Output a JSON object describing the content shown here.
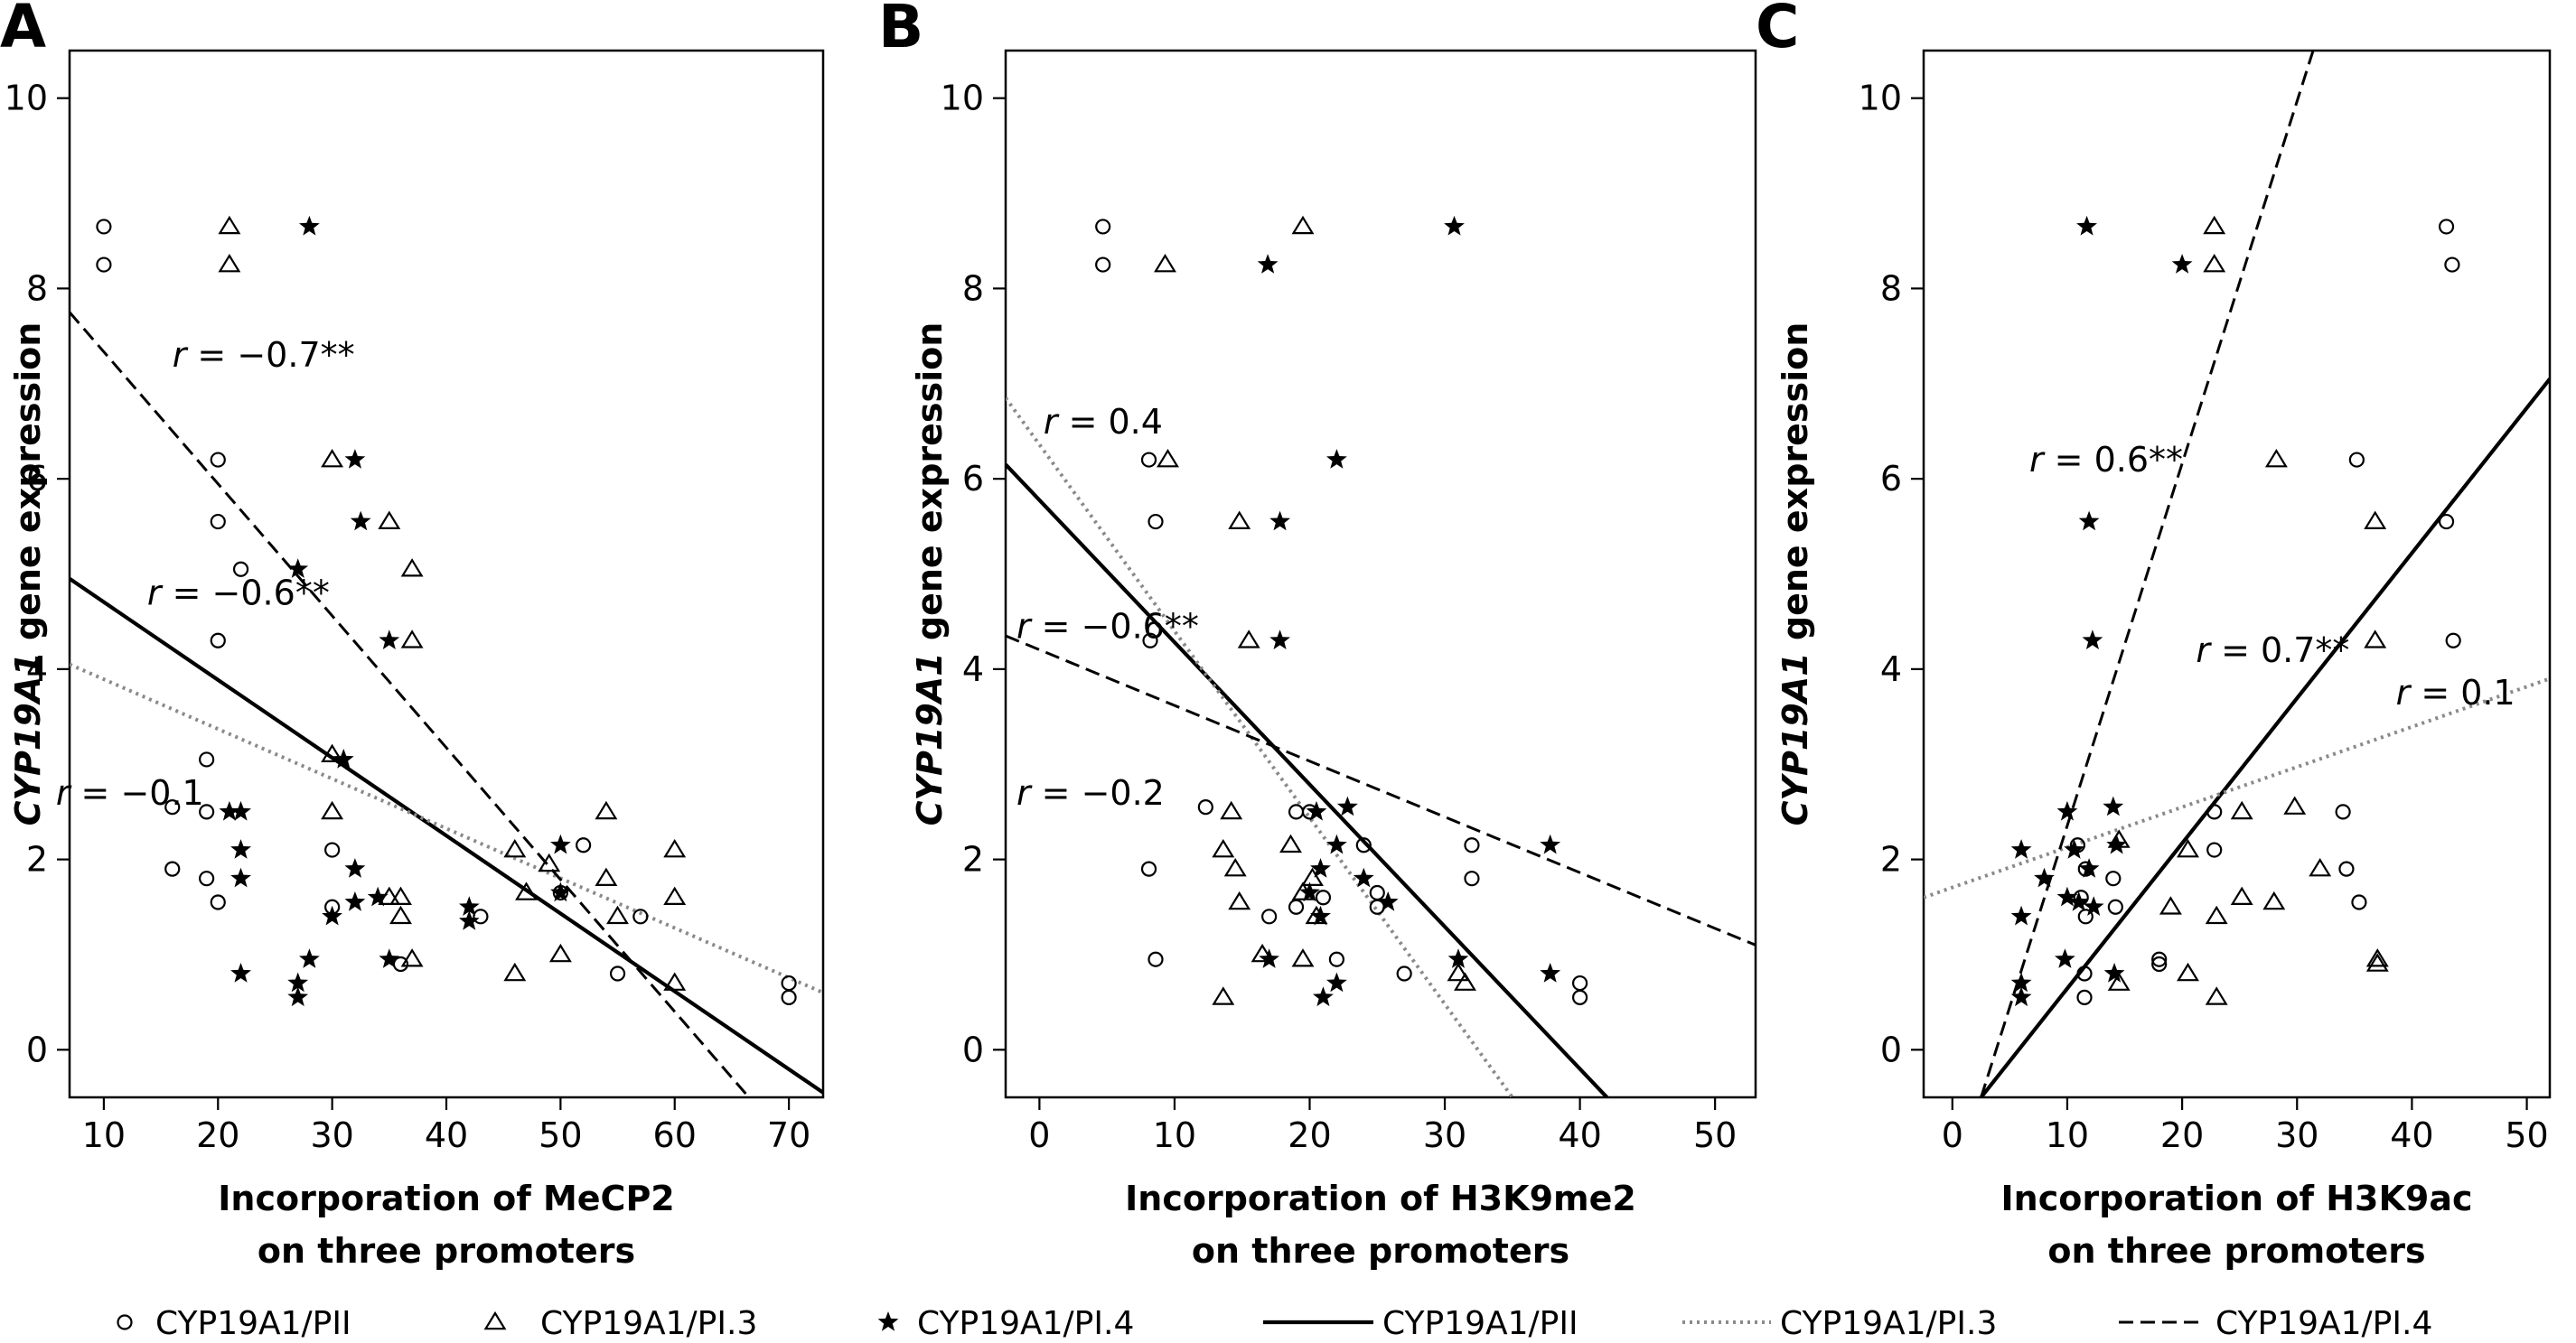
{
  "legend": [
    {
      "label": "CYP19A1/PII",
      "kind": "marker",
      "marker": "circle"
    },
    {
      "label": "CYP19A1/PI.3",
      "kind": "marker",
      "marker": "triangle"
    },
    {
      "label": "CYP19A1/PI.4",
      "kind": "marker",
      "marker": "star"
    },
    {
      "label": "CYP19A1/PII",
      "kind": "line",
      "style": "solid"
    },
    {
      "label": "CYP19A1/PI.3",
      "kind": "line",
      "style": "dotted"
    },
    {
      "label": "CYP19A1/PI.4",
      "kind": "line",
      "style": "dashed"
    }
  ],
  "colors": {
    "ink": "#000000",
    "dotted_line": "#8a8a8a"
  },
  "chart_data": [
    {
      "panel": "A",
      "type": "scatter",
      "xlabel": [
        "Incorporation of MeCP2",
        "on three promoters"
      ],
      "ylabel_italic": "CYP19A1",
      "ylabel_rest": " gene expression",
      "xlim": [
        7,
        73
      ],
      "ylim": [
        -0.5,
        10.5
      ],
      "xticks": [
        10,
        20,
        30,
        40,
        50,
        60,
        70
      ],
      "yticks": [
        0,
        2,
        4,
        6,
        8,
        10
      ],
      "series": [
        {
          "name": "CYP19A1/PII",
          "marker": "circle",
          "points": [
            [
              10,
              8.65
            ],
            [
              10,
              8.25
            ],
            [
              16,
              2.55
            ],
            [
              16,
              1.9
            ],
            [
              19,
              3.05
            ],
            [
              19,
              2.5
            ],
            [
              19,
              1.8
            ],
            [
              20,
              6.2
            ],
            [
              20,
              5.55
            ],
            [
              20,
              4.3
            ],
            [
              20,
              1.55
            ],
            [
              22,
              5.05
            ],
            [
              30,
              2.1
            ],
            [
              30,
              1.5
            ],
            [
              36,
              0.9
            ],
            [
              43,
              1.4
            ],
            [
              50,
              1.65
            ],
            [
              52,
              2.15
            ],
            [
              55,
              0.8
            ],
            [
              57,
              1.4
            ],
            [
              70,
              0.7
            ],
            [
              70,
              0.55
            ]
          ]
        },
        {
          "name": "CYP19A1/PI.3",
          "marker": "triangle",
          "points": [
            [
              21,
              8.65
            ],
            [
              21,
              8.25
            ],
            [
              30,
              6.2
            ],
            [
              30,
              3.1
            ],
            [
              30,
              2.5
            ],
            [
              35,
              5.55
            ],
            [
              35,
              1.6
            ],
            [
              36,
              1.6
            ],
            [
              36,
              1.4
            ],
            [
              37,
              5.05
            ],
            [
              37,
              4.3
            ],
            [
              37,
              0.95
            ],
            [
              46,
              2.1
            ],
            [
              46,
              0.8
            ],
            [
              47,
              1.65
            ],
            [
              49,
              1.95
            ],
            [
              50,
              1.0
            ],
            [
              54,
              2.5
            ],
            [
              54,
              1.8
            ],
            [
              55,
              1.4
            ],
            [
              60,
              2.1
            ],
            [
              60,
              1.6
            ],
            [
              60,
              0.7
            ]
          ]
        },
        {
          "name": "CYP19A1/PI.4",
          "marker": "star",
          "points": [
            [
              28,
              8.65
            ],
            [
              32,
              6.2
            ],
            [
              32.5,
              5.55
            ],
            [
              27,
              5.05
            ],
            [
              35,
              4.3
            ],
            [
              31,
              3.05
            ],
            [
              21,
              2.5
            ],
            [
              22,
              2.5
            ],
            [
              22,
              2.1
            ],
            [
              22,
              1.8
            ],
            [
              32,
              1.9
            ],
            [
              32,
              1.55
            ],
            [
              34,
              1.6
            ],
            [
              30,
              1.4
            ],
            [
              22,
              0.8
            ],
            [
              28,
              0.95
            ],
            [
              27,
              0.7
            ],
            [
              27,
              0.55
            ],
            [
              35,
              0.95
            ],
            [
              42,
              1.5
            ],
            [
              42,
              1.35
            ],
            [
              50,
              2.15
            ],
            [
              50,
              1.65
            ]
          ]
        }
      ],
      "fits": [
        {
          "name": "CYP19A1/PII",
          "style": "solid",
          "r_label": "r = −0.6**",
          "line": [
            [
              7,
              4.95
            ],
            [
              73,
              -0.45
            ]
          ],
          "label_at": [
            13.8,
            4.8
          ]
        },
        {
          "name": "CYP19A1/PI.3",
          "style": "dotted",
          "r_label": "r = −0.1",
          "line": [
            [
              7,
              4.05
            ],
            [
              73,
              0.6
            ]
          ],
          "label_at": [
            5.8,
            2.7
          ]
        },
        {
          "name": "CYP19A1/PI.4",
          "style": "dashed",
          "r_label": "r = −0.7**",
          "line": [
            [
              7,
              7.75
            ],
            [
              66.5,
              -0.5
            ]
          ],
          "label_at": [
            16,
            7.3
          ]
        }
      ]
    },
    {
      "panel": "B",
      "type": "scatter",
      "xlabel": [
        "Incorporation of H3K9me2",
        "on three promoters"
      ],
      "ylabel_italic": "CYP19A1",
      "ylabel_rest": " gene expression",
      "xlim": [
        -2.5,
        53
      ],
      "ylim": [
        -0.5,
        10.5
      ],
      "xticks": [
        0,
        10,
        20,
        30,
        40,
        50
      ],
      "yticks": [
        0,
        2,
        4,
        6,
        8,
        10
      ],
      "series": [
        {
          "name": "CYP19A1/PII",
          "marker": "circle",
          "points": [
            [
              4.7,
              8.65
            ],
            [
              4.7,
              8.25
            ],
            [
              8.1,
              6.2
            ],
            [
              8.6,
              5.55
            ],
            [
              8.2,
              4.3
            ],
            [
              12.3,
              2.55
            ],
            [
              19,
              2.5
            ],
            [
              20,
              2.5
            ],
            [
              24,
              2.15
            ],
            [
              32,
              2.15
            ],
            [
              32,
              1.8
            ],
            [
              8.1,
              1.9
            ],
            [
              21,
              1.6
            ],
            [
              25,
              1.65
            ],
            [
              19,
              1.5
            ],
            [
              17,
              1.4
            ],
            [
              25,
              1.5
            ],
            [
              22,
              0.95
            ],
            [
              27,
              0.8
            ],
            [
              40,
              0.7
            ],
            [
              40,
              0.55
            ],
            [
              8.6,
              0.95
            ]
          ]
        },
        {
          "name": "CYP19A1/PI.3",
          "marker": "triangle",
          "points": [
            [
              19.5,
              8.65
            ],
            [
              9.3,
              8.25
            ],
            [
              9.5,
              6.2
            ],
            [
              14.8,
              5.55
            ],
            [
              15.5,
              4.3
            ],
            [
              14.2,
              2.5
            ],
            [
              13.6,
              2.1
            ],
            [
              14.5,
              1.9
            ],
            [
              14.8,
              1.55
            ],
            [
              18.6,
              2.15
            ],
            [
              19.5,
              1.65
            ],
            [
              20.2,
              1.8
            ],
            [
              20.5,
              1.4
            ],
            [
              16.5,
              1.0
            ],
            [
              13.6,
              0.55
            ],
            [
              19.5,
              0.95
            ],
            [
              31,
              0.8
            ],
            [
              31.5,
              0.7
            ]
          ]
        },
        {
          "name": "CYP19A1/PI.4",
          "marker": "star",
          "points": [
            [
              30.7,
              8.65
            ],
            [
              16.9,
              8.25
            ],
            [
              22,
              6.2
            ],
            [
              17.8,
              5.55
            ],
            [
              17.8,
              4.3
            ],
            [
              20.5,
              2.5
            ],
            [
              22.8,
              2.55
            ],
            [
              20.8,
              1.9
            ],
            [
              22,
              2.15
            ],
            [
              24,
              1.8
            ],
            [
              25.8,
              1.55
            ],
            [
              20,
              1.65
            ],
            [
              20.8,
              1.4
            ],
            [
              17,
              0.95
            ],
            [
              21,
              0.55
            ],
            [
              22,
              0.7
            ],
            [
              31,
              0.95
            ],
            [
              37.8,
              0.8
            ],
            [
              37.8,
              2.15
            ]
          ]
        }
      ],
      "fits": [
        {
          "name": "CYP19A1/PII",
          "style": "solid",
          "r_label": "r = −0.6**",
          "line": [
            [
              -2.5,
              6.15
            ],
            [
              42,
              -0.5
            ]
          ],
          "label_at": [
            -1.7,
            4.45
          ]
        },
        {
          "name": "CYP19A1/PI.3",
          "style": "dotted",
          "r_label": "r = −0.2",
          "line": [
            [
              -2.5,
              6.85
            ],
            [
              35,
              -0.5
            ]
          ],
          "label_at": [
            -1.7,
            2.7
          ]
        },
        {
          "name": "CYP19A1/PI.4",
          "style": "dashed",
          "r_label": "r = 0.4",
          "line": [
            [
              -2.5,
              4.35
            ],
            [
              53,
              1.1
            ]
          ],
          "label_at": [
            0.3,
            6.6
          ]
        }
      ]
    },
    {
      "panel": "C",
      "type": "scatter",
      "xlabel": [
        "Incorporation of H3K9ac",
        "on three promoters"
      ],
      "ylabel_italic": "CYP19A1",
      "ylabel_rest": " gene expression",
      "xlim": [
        -2.5,
        52
      ],
      "ylim": [
        -0.5,
        10.5
      ],
      "xticks": [
        0,
        10,
        20,
        30,
        40,
        50
      ],
      "yticks": [
        0,
        2,
        4,
        6,
        8,
        10
      ],
      "series": [
        {
          "name": "CYP19A1/PII",
          "marker": "circle",
          "points": [
            [
              43,
              8.65
            ],
            [
              43.5,
              8.25
            ],
            [
              35.2,
              6.2
            ],
            [
              43,
              5.55
            ],
            [
              43.6,
              4.3
            ],
            [
              22.8,
              2.5
            ],
            [
              10.9,
              2.15
            ],
            [
              11.6,
              1.9
            ],
            [
              11.2,
              1.6
            ],
            [
              11.6,
              1.4
            ],
            [
              14,
              1.8
            ],
            [
              14.2,
              1.5
            ],
            [
              22.8,
              2.1
            ],
            [
              34,
              2.5
            ],
            [
              34.3,
              1.9
            ],
            [
              35.4,
              1.55
            ],
            [
              18,
              0.95
            ],
            [
              18,
              0.9
            ],
            [
              11.5,
              0.8
            ],
            [
              11.5,
              0.55
            ]
          ]
        },
        {
          "name": "CYP19A1/PI.3",
          "marker": "triangle",
          "points": [
            [
              22.8,
              8.65
            ],
            [
              22.8,
              8.25
            ],
            [
              28.2,
              6.2
            ],
            [
              36.8,
              5.55
            ],
            [
              36.8,
              4.3
            ],
            [
              25.2,
              2.5
            ],
            [
              29.8,
              2.55
            ],
            [
              20.5,
              2.1
            ],
            [
              19,
              1.5
            ],
            [
              25.2,
              1.6
            ],
            [
              28,
              1.55
            ],
            [
              32,
              1.9
            ],
            [
              23,
              1.4
            ],
            [
              20.5,
              0.8
            ],
            [
              14.5,
              0.7
            ],
            [
              23,
              0.55
            ],
            [
              14.5,
              2.2
            ],
            [
              37,
              0.95
            ],
            [
              37,
              0.9
            ]
          ]
        },
        {
          "name": "CYP19A1/PI.4",
          "marker": "star",
          "points": [
            [
              11.7,
              8.65
            ],
            [
              20,
              8.25
            ],
            [
              11.9,
              5.55
            ],
            [
              12.2,
              4.3
            ],
            [
              6,
              2.1
            ],
            [
              8,
              1.8
            ],
            [
              10,
              2.5
            ],
            [
              10.6,
              2.1
            ],
            [
              14,
              2.55
            ],
            [
              14.3,
              2.15
            ],
            [
              11.9,
              1.9
            ],
            [
              11,
              1.55
            ],
            [
              10,
              1.6
            ],
            [
              12.3,
              1.5
            ],
            [
              6,
              1.4
            ],
            [
              9.8,
              0.95
            ],
            [
              6,
              0.7
            ],
            [
              6,
              0.55
            ],
            [
              14.1,
              0.8
            ]
          ]
        }
      ],
      "fits": [
        {
          "name": "CYP19A1/PII",
          "style": "solid",
          "r_label": "r = 0.7**",
          "line": [
            [
              2.5,
              -0.5
            ],
            [
              52,
              7.05
            ]
          ],
          "label_at": [
            21.2,
            4.2
          ]
        },
        {
          "name": "CYP19A1/PI.3",
          "style": "dotted",
          "r_label": "r = 0.1",
          "line": [
            [
              -2.5,
              1.6
            ],
            [
              52,
              3.9
            ]
          ],
          "label_at": [
            38.6,
            3.75
          ]
        },
        {
          "name": "CYP19A1/PI.4",
          "style": "dashed",
          "r_label": "r = 0.6**",
          "line": [
            [
              2.5,
              -0.5
            ],
            [
              31.4,
              10.5
            ]
          ],
          "label_at": [
            6.7,
            6.2
          ]
        }
      ]
    }
  ]
}
